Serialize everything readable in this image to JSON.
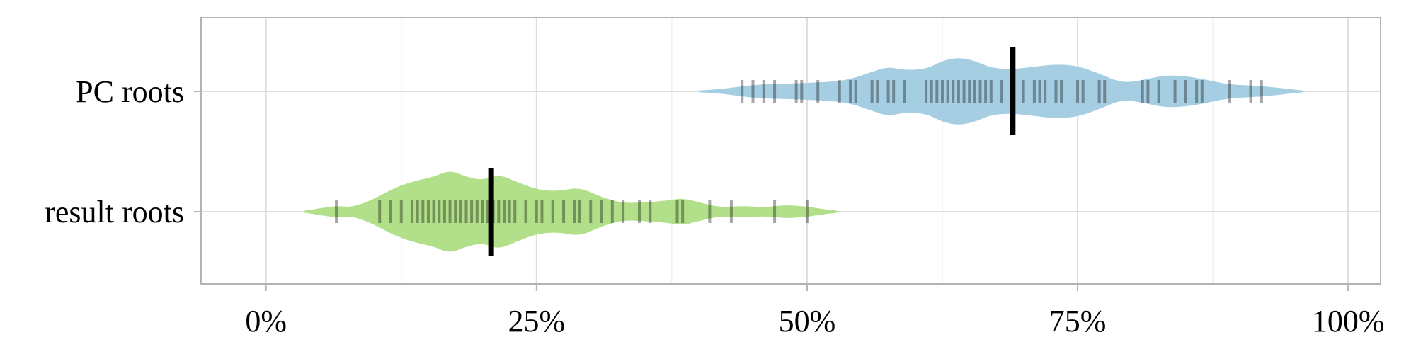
{
  "chart_data": {
    "type": "violin",
    "title": "",
    "xlabel": "",
    "ylabel": "",
    "xlim": [
      -0.06,
      1.03
    ],
    "x_ticks": [
      0,
      0.25,
      0.5,
      0.75,
      1.0
    ],
    "x_tick_labels": [
      "0%",
      "25%",
      "50%",
      "75%",
      "100%"
    ],
    "grid": true,
    "legend": "none",
    "categories": [
      "PC roots",
      "result roots"
    ],
    "series": [
      {
        "category": "PC roots",
        "color": "#a6cee3",
        "median": 0.69,
        "range": [
          0.4,
          0.96
        ],
        "density": [
          [
            0.4,
            0.02
          ],
          [
            0.42,
            0.05
          ],
          [
            0.44,
            0.12
          ],
          [
            0.46,
            0.17
          ],
          [
            0.48,
            0.18
          ],
          [
            0.5,
            0.2
          ],
          [
            0.52,
            0.22
          ],
          [
            0.54,
            0.28
          ],
          [
            0.56,
            0.46
          ],
          [
            0.575,
            0.58
          ],
          [
            0.59,
            0.5
          ],
          [
            0.61,
            0.52
          ],
          [
            0.625,
            0.72
          ],
          [
            0.64,
            0.8
          ],
          [
            0.655,
            0.72
          ],
          [
            0.67,
            0.55
          ],
          [
            0.69,
            0.52
          ],
          [
            0.71,
            0.58
          ],
          [
            0.73,
            0.64
          ],
          [
            0.75,
            0.6
          ],
          [
            0.77,
            0.42
          ],
          [
            0.79,
            0.2
          ],
          [
            0.81,
            0.26
          ],
          [
            0.83,
            0.38
          ],
          [
            0.85,
            0.36
          ],
          [
            0.87,
            0.27
          ],
          [
            0.89,
            0.16
          ],
          [
            0.91,
            0.14
          ],
          [
            0.93,
            0.1
          ],
          [
            0.95,
            0.04
          ],
          [
            0.96,
            0.02
          ]
        ],
        "points": [
          0.44,
          0.45,
          0.46,
          0.47,
          0.49,
          0.495,
          0.51,
          0.53,
          0.54,
          0.545,
          0.56,
          0.565,
          0.575,
          0.58,
          0.59,
          0.61,
          0.615,
          0.62,
          0.625,
          0.63,
          0.635,
          0.64,
          0.645,
          0.65,
          0.655,
          0.66,
          0.665,
          0.67,
          0.68,
          0.69,
          0.7,
          0.71,
          0.715,
          0.72,
          0.73,
          0.735,
          0.75,
          0.755,
          0.77,
          0.775,
          0.81,
          0.815,
          0.825,
          0.84,
          0.85,
          0.86,
          0.865,
          0.89,
          0.91,
          0.92
        ]
      },
      {
        "category": "result roots",
        "color": "#b2df8a",
        "median": 0.208,
        "range": [
          0.035,
          0.53
        ],
        "density": [
          [
            0.035,
            0.02
          ],
          [
            0.05,
            0.08
          ],
          [
            0.065,
            0.14
          ],
          [
            0.08,
            0.1
          ],
          [
            0.1,
            0.3
          ],
          [
            0.12,
            0.58
          ],
          [
            0.14,
            0.74
          ],
          [
            0.155,
            0.82
          ],
          [
            0.17,
            0.98
          ],
          [
            0.185,
            0.82
          ],
          [
            0.2,
            0.74
          ],
          [
            0.215,
            0.88
          ],
          [
            0.23,
            0.72
          ],
          [
            0.25,
            0.52
          ],
          [
            0.27,
            0.48
          ],
          [
            0.29,
            0.58
          ],
          [
            0.31,
            0.34
          ],
          [
            0.33,
            0.2
          ],
          [
            0.35,
            0.22
          ],
          [
            0.37,
            0.26
          ],
          [
            0.385,
            0.32
          ],
          [
            0.4,
            0.22
          ],
          [
            0.42,
            0.1
          ],
          [
            0.44,
            0.14
          ],
          [
            0.46,
            0.1
          ],
          [
            0.48,
            0.16
          ],
          [
            0.5,
            0.12
          ],
          [
            0.515,
            0.06
          ],
          [
            0.53,
            0.02
          ]
        ],
        "points": [
          0.065,
          0.105,
          0.115,
          0.125,
          0.135,
          0.14,
          0.145,
          0.15,
          0.155,
          0.16,
          0.165,
          0.17,
          0.175,
          0.18,
          0.185,
          0.19,
          0.195,
          0.2,
          0.205,
          0.21,
          0.215,
          0.22,
          0.225,
          0.23,
          0.24,
          0.25,
          0.255,
          0.265,
          0.275,
          0.285,
          0.29,
          0.3,
          0.31,
          0.32,
          0.33,
          0.345,
          0.355,
          0.38,
          0.385,
          0.41,
          0.43,
          0.47,
          0.5
        ]
      }
    ]
  }
}
